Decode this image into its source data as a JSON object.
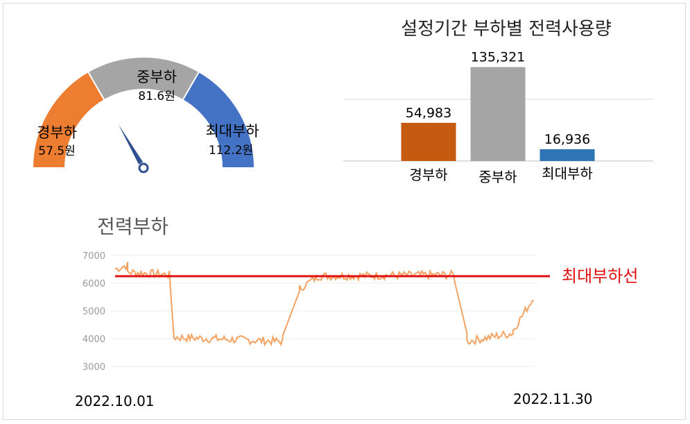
{
  "colors": {
    "light": "#ed7d31",
    "mid": "#a5a5a5",
    "peak": "#4472c4",
    "bar_light": "#c55a11",
    "bar_peak": "#2e75b6",
    "line": "#f4a261",
    "maxline": "#e01010",
    "needle": "#2f4f8f"
  },
  "gauge": {
    "needle_value": 75,
    "range": [
      55,
      115
    ],
    "segments": [
      {
        "name": "경부하",
        "value_label": "57.5원",
        "color": "#ed7d31"
      },
      {
        "name": "중부하",
        "value_label": "81.6원",
        "color": "#a5a5a5"
      },
      {
        "name": "최대부하",
        "value_label": "112.2원",
        "color": "#4472c4"
      }
    ]
  },
  "chart_data": [
    {
      "type": "bar",
      "title": "설정기간 부하별 전력사용량",
      "categories": [
        "경부하",
        "중부하",
        "최대부하"
      ],
      "values": [
        54983,
        135321,
        16936
      ],
      "value_labels": [
        "54,983",
        "135,321",
        "16,936"
      ],
      "colors": [
        "#c55a11",
        "#a5a5a5",
        "#2e75b6"
      ],
      "ylim": [
        0,
        140000
      ]
    },
    {
      "type": "line",
      "title": "전력부하",
      "ylim": [
        3000,
        7000
      ],
      "yticks": [
        "7000",
        "6000",
        "5000",
        "4000",
        "3000"
      ],
      "xlabels": [
        "2022.10.01",
        "2022.11.30"
      ],
      "threshold": {
        "label": "최대부하선",
        "value": 6250
      },
      "segments": [
        {
          "x": [
            0,
            0.03
          ],
          "y": [
            6500,
            6650
          ]
        },
        {
          "x": [
            0.03,
            0.13
          ],
          "y": [
            6400,
            6300
          ]
        },
        {
          "x": [
            0.13,
            0.14
          ],
          "y": [
            6300,
            4100
          ]
        },
        {
          "x": [
            0.14,
            0.4
          ],
          "y": [
            4050,
            3900
          ]
        },
        {
          "x": [
            0.4,
            0.44
          ],
          "y": [
            4100,
            5700
          ]
        },
        {
          "x": [
            0.44,
            0.48
          ],
          "y": [
            5800,
            6200
          ]
        },
        {
          "x": [
            0.48,
            0.81
          ],
          "y": [
            6250,
            6300
          ]
        },
        {
          "x": [
            0.81,
            0.84
          ],
          "y": [
            6100,
            4200
          ]
        },
        {
          "x": [
            0.84,
            0.95
          ],
          "y": [
            3900,
            4200
          ]
        },
        {
          "x": [
            0.95,
            1.0
          ],
          "y": [
            4300,
            5500
          ]
        }
      ]
    }
  ]
}
